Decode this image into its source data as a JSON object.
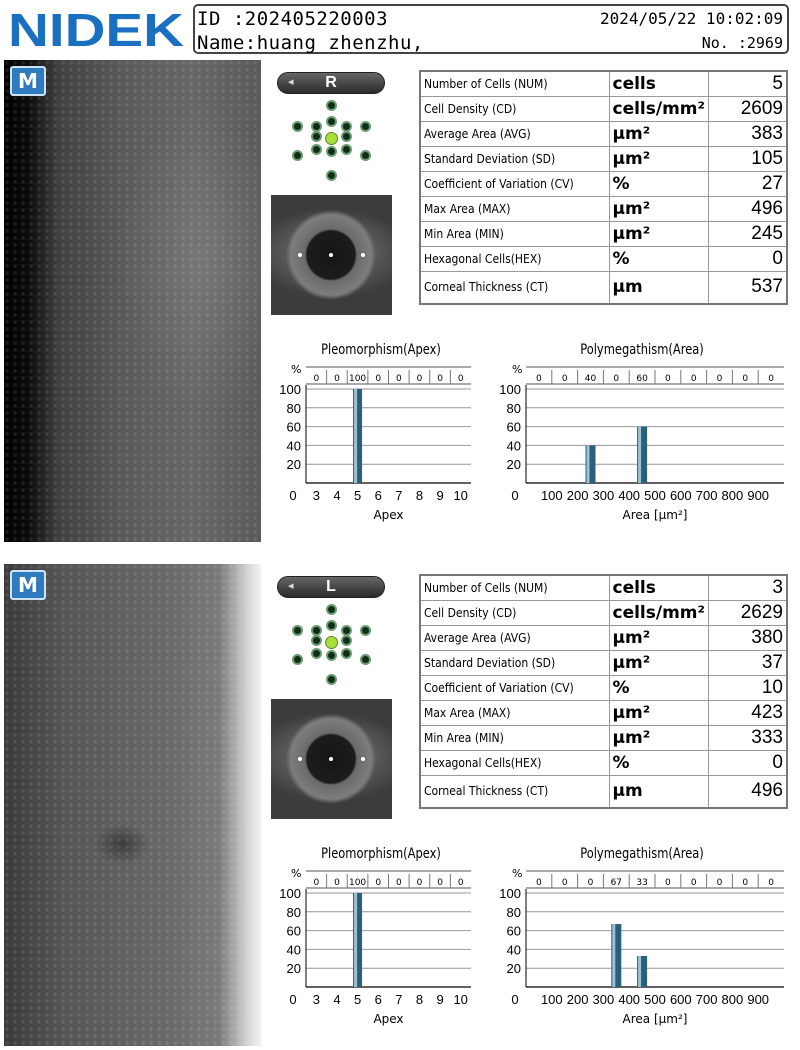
{
  "header": {
    "logo": "NIDEK",
    "id_text": "ID  :202405220003",
    "name_text": "Name:huang zhenzhu,",
    "datetime": "2024/05/22 10:02:09",
    "number": "No. :2969"
  },
  "param_names": [
    "Number of Cells (NUM)",
    "Cell Density (CD)",
    "Average Area (AVG)",
    "Standard Deviation (SD)",
    "Coefficient of Variation (CV)",
    "Max Area (MAX)",
    "Min Area (MIN)",
    "Hexagonal Cells(HEX)",
    "Corneal Thickness (CT)"
  ],
  "param_units": [
    "cells",
    "cells/mm²",
    "μm²",
    "μm²",
    "%",
    "μm²",
    "μm²",
    "%",
    "μm"
  ],
  "eyes": [
    {
      "badge": "M",
      "side": "R",
      "values": [
        "5",
        "2609",
        "383",
        "105",
        "27",
        "496",
        "245",
        "0",
        "537"
      ],
      "pleo": {
        "title": "Pleomorphism(Apex)",
        "percent_label": "%",
        "top_values": [
          "0",
          "0",
          "100",
          "0",
          "0",
          "0",
          "0",
          "0"
        ],
        "y_ticks": [
          "100",
          "80",
          "60",
          "40",
          "20"
        ],
        "x_ticks": [
          "0",
          "3",
          "4",
          "5",
          "6",
          "7",
          "8",
          "9",
          "10"
        ],
        "xlabel": "Apex"
      },
      "poly": {
        "title": "Polymegathism(Area)",
        "percent_label": "%",
        "top_values": [
          "0",
          "0",
          "40",
          "0",
          "60",
          "0",
          "0",
          "0",
          "0",
          "0"
        ],
        "y_ticks": [
          "100",
          "80",
          "60",
          "40",
          "20"
        ],
        "x_ticks": [
          "0",
          "100",
          "200",
          "300",
          "400",
          "500",
          "600",
          "700",
          "800",
          "900"
        ],
        "xlabel": "Area [μm²]"
      }
    },
    {
      "badge": "M",
      "side": "L",
      "values": [
        "3",
        "2629",
        "380",
        "37",
        "10",
        "423",
        "333",
        "0",
        "496"
      ],
      "pleo": {
        "title": "Pleomorphism(Apex)",
        "percent_label": "%",
        "top_values": [
          "0",
          "0",
          "100",
          "0",
          "0",
          "0",
          "0",
          "0"
        ],
        "y_ticks": [
          "100",
          "80",
          "60",
          "40",
          "20"
        ],
        "x_ticks": [
          "0",
          "3",
          "4",
          "5",
          "6",
          "7",
          "8",
          "9",
          "10"
        ],
        "xlabel": "Apex"
      },
      "poly": {
        "title": "Polymegathism(Area)",
        "percent_label": "%",
        "top_values": [
          "0",
          "0",
          "0",
          "67",
          "33",
          "0",
          "0",
          "0",
          "0",
          "0"
        ],
        "y_ticks": [
          "100",
          "80",
          "60",
          "40",
          "20"
        ],
        "x_ticks": [
          "0",
          "100",
          "200",
          "300",
          "400",
          "500",
          "600",
          "700",
          "800",
          "900"
        ],
        "xlabel": "Area [μm²]"
      }
    }
  ],
  "chart_data": [
    {
      "type": "bar",
      "title": "Pleomorphism(Apex)",
      "xlabel": "Apex",
      "ylabel": "%",
      "categories": [
        "≤3",
        "4",
        "5",
        "6",
        "7",
        "8",
        "9",
        "≥10"
      ],
      "values": [
        0,
        0,
        100,
        0,
        0,
        0,
        0,
        0
      ],
      "ylim": [
        0,
        100
      ],
      "grid": true
    },
    {
      "type": "bar",
      "title": "Polymegathism(Area)",
      "xlabel": "Area [μm²]",
      "ylabel": "%",
      "categories": [
        "0-100",
        "100-200",
        "200-300",
        "300-400",
        "400-500",
        "500-600",
        "600-700",
        "700-800",
        "800-900",
        "900+"
      ],
      "values": [
        0,
        0,
        40,
        0,
        60,
        0,
        0,
        0,
        0,
        0
      ],
      "ylim": [
        0,
        100
      ],
      "grid": true
    },
    {
      "type": "bar",
      "title": "Pleomorphism(Apex)",
      "xlabel": "Apex",
      "ylabel": "%",
      "categories": [
        "≤3",
        "4",
        "5",
        "6",
        "7",
        "8",
        "9",
        "≥10"
      ],
      "values": [
        0,
        0,
        100,
        0,
        0,
        0,
        0,
        0
      ],
      "ylim": [
        0,
        100
      ],
      "grid": true
    },
    {
      "type": "bar",
      "title": "Polymegathism(Area)",
      "xlabel": "Area [μm²]",
      "ylabel": "%",
      "categories": [
        "0-100",
        "100-200",
        "200-300",
        "300-400",
        "400-500",
        "500-600",
        "600-700",
        "700-800",
        "800-900",
        "900+"
      ],
      "values": [
        0,
        0,
        0,
        67,
        33,
        0,
        0,
        0,
        0,
        0
      ],
      "ylim": [
        0,
        100
      ],
      "grid": true
    }
  ],
  "colors": {
    "logo": "#1a6fc0",
    "badge": "#2f7bbf",
    "bar": "#2c5f7a",
    "bar_light": "#9cc0d4",
    "fixation_center": "#a8e03a",
    "unit_blue": "#1a6fc0"
  }
}
